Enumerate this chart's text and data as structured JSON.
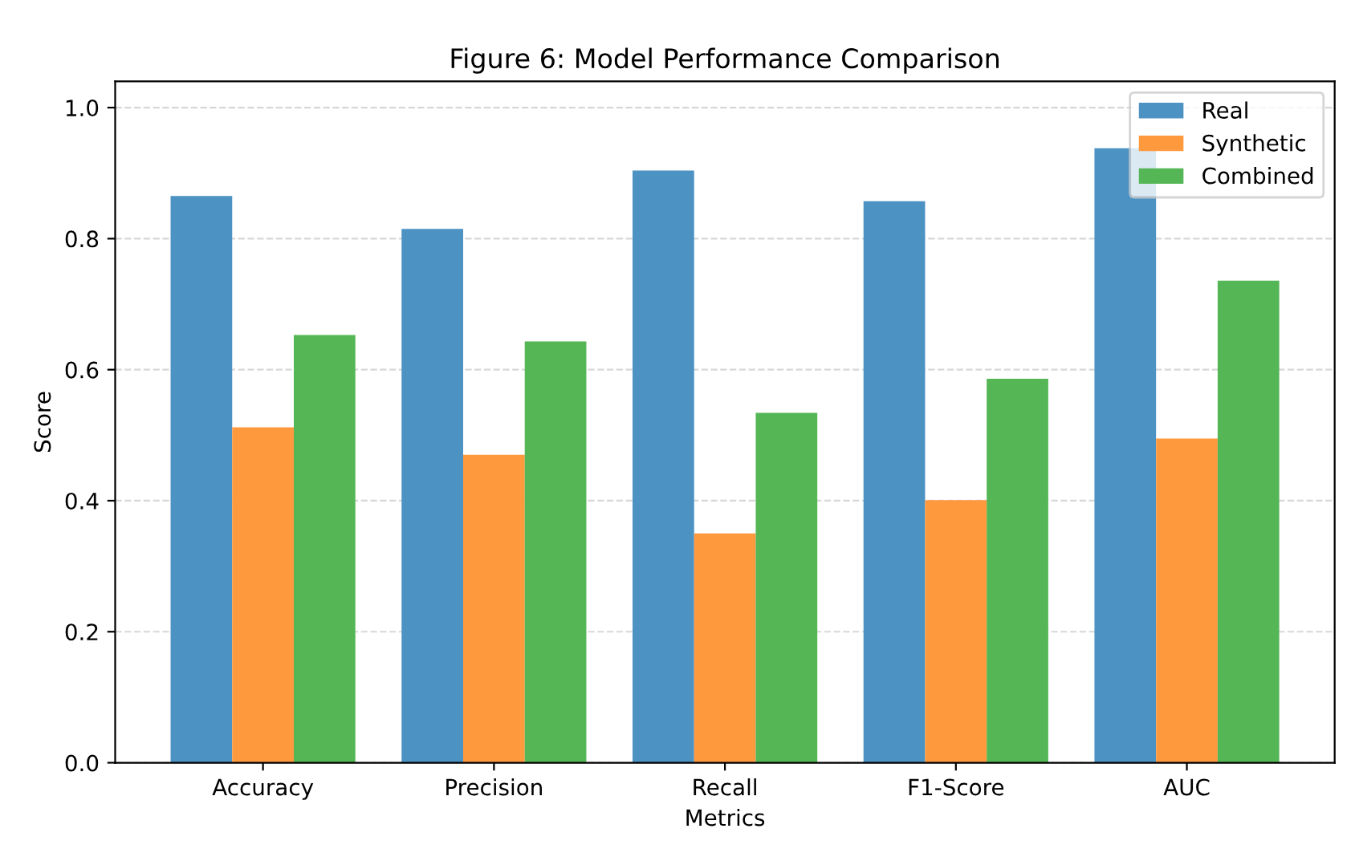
{
  "chart_data": {
    "type": "bar",
    "title": "Figure 6: Model Performance Comparison",
    "xlabel": "Metrics",
    "ylabel": "Score",
    "categories": [
      "Accuracy",
      "Precision",
      "Recall",
      "F1-Score",
      "AUC"
    ],
    "series": [
      {
        "name": "Real",
        "color": "#4c92c3",
        "values": [
          0.865,
          0.815,
          0.904,
          0.857,
          0.938
        ]
      },
      {
        "name": "Synthetic",
        "color": "#ff993e",
        "values": [
          0.512,
          0.47,
          0.35,
          0.401,
          0.495
        ]
      },
      {
        "name": "Combined",
        "color": "#55b655",
        "values": [
          0.653,
          0.643,
          0.534,
          0.586,
          0.736
        ]
      }
    ],
    "ylim": [
      0,
      1.04
    ],
    "yticks": [
      {
        "value": 0,
        "label": "0.0"
      },
      {
        "value": 0.2,
        "label": "0.2"
      },
      {
        "value": 0.4,
        "label": "0.4"
      },
      {
        "value": 0.6,
        "label": "0.6"
      },
      {
        "value": 0.8,
        "label": "0.8"
      },
      {
        "value": 1.0,
        "label": "1.0"
      }
    ],
    "grid": "y",
    "legend": "top right"
  }
}
